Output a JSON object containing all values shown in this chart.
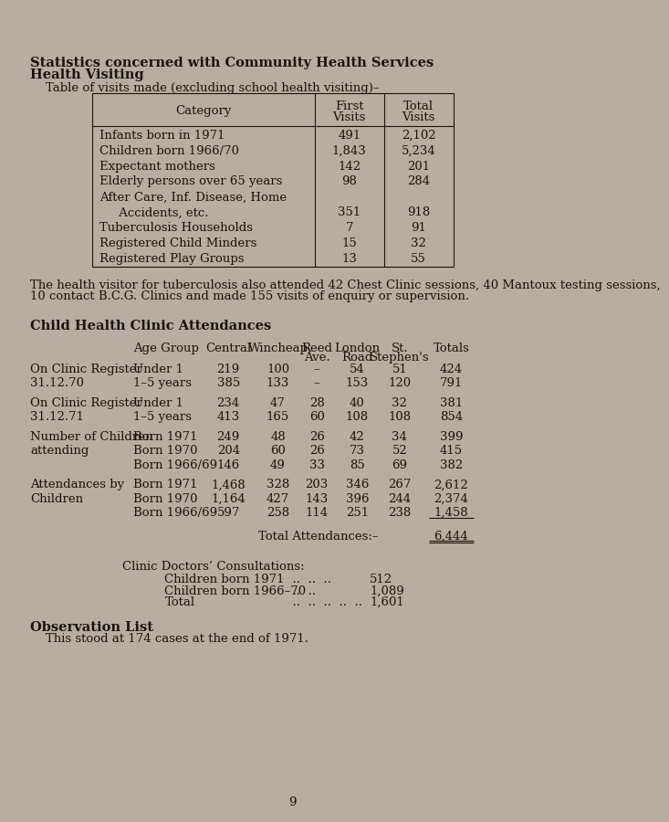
{
  "bg_color": "#b8ad9e",
  "text_color": "#1a1408",
  "title1": "Statistics concerned with Community Health Services",
  "title2": "Health Visiting",
  "subtitle": "Table of visits made (excluding school health visiting)–",
  "table1_rows": [
    [
      "Infants born in 1971",
      "491",
      "2,102"
    ],
    [
      "Children born 1966/70",
      "1,843",
      "5,234"
    ],
    [
      "Expectant mothers",
      "142",
      "201"
    ],
    [
      "Elderly persons over 65 years",
      "98",
      "284"
    ],
    [
      "After Care, Inf. Disease, Home",
      "",
      ""
    ],
    [
      "     Accidents, etc.",
      "351",
      "918"
    ],
    [
      "Tuberculosis Households",
      "7",
      "91"
    ],
    [
      "Registered Child Minders",
      "15",
      "32"
    ],
    [
      "Registered Play Groups",
      "13",
      "55"
    ]
  ],
  "para1_line1": "The health visitor for tuberculosis also attended 42 Chest Clinic sessions, 40 Mantoux testing sessions,",
  "para1_line2": "10 contact B.C.G. Clinics and made 155 visits of enquiry or supervision.",
  "section2_title": "Child Health Clinic Attendances",
  "table2_rows": [
    [
      "On Clinic Register",
      "Under 1",
      "219",
      "100",
      "–",
      "54",
      "51",
      "424"
    ],
    [
      "    31.12.70",
      "1–5 years",
      "385",
      "133",
      "–",
      "153",
      "120",
      "791"
    ],
    [
      "On Clinic Register",
      "Under 1",
      "234",
      "47",
      "28",
      "40",
      "32",
      "381"
    ],
    [
      "    31.12.71",
      "1–5 years",
      "413",
      "165",
      "60",
      "108",
      "108",
      "854"
    ],
    [
      "Number of Children",
      "Born 1971",
      "249",
      "48",
      "26",
      "42",
      "34",
      "399"
    ],
    [
      "    attending",
      "Born 1970",
      "204",
      "60",
      "26",
      "73",
      "52",
      "415"
    ],
    [
      "",
      "Born 1966/69",
      "146",
      "49",
      "33",
      "85",
      "69",
      "382"
    ],
    [
      "Attendances by",
      "Born 1971",
      "1,468",
      "328",
      "203",
      "346",
      "267",
      "2,612"
    ],
    [
      "    Children",
      "Born 1970",
      "1,164",
      "427",
      "143",
      "396",
      "244",
      "2,374"
    ],
    [
      "",
      "Born 1966/69",
      "597",
      "258",
      "114",
      "251",
      "238",
      "1,458"
    ]
  ],
  "total_attendances_label": "Total Attendances:–",
  "total_attendances_value": "6,444",
  "consultations_title": "Clinic Doctors’ Consultations:",
  "cons_row1_label": "Children born 1971",
  "cons_row1_dots": "  ..  ..  ..",
  "cons_row1_val": "512",
  "cons_row2_label": "Children born 1966–70",
  "cons_row2_dots": "  ..  ..",
  "cons_row2_val": "1,089",
  "cons_row3_label": "Total",
  "cons_row3_dots": "  ..  ..  ..  ..  ..",
  "cons_row3_val": "1,601",
  "obs_title": "Observation List",
  "obs_text": "This stood at 174 cases at the end of 1971.",
  "page_number": "9"
}
